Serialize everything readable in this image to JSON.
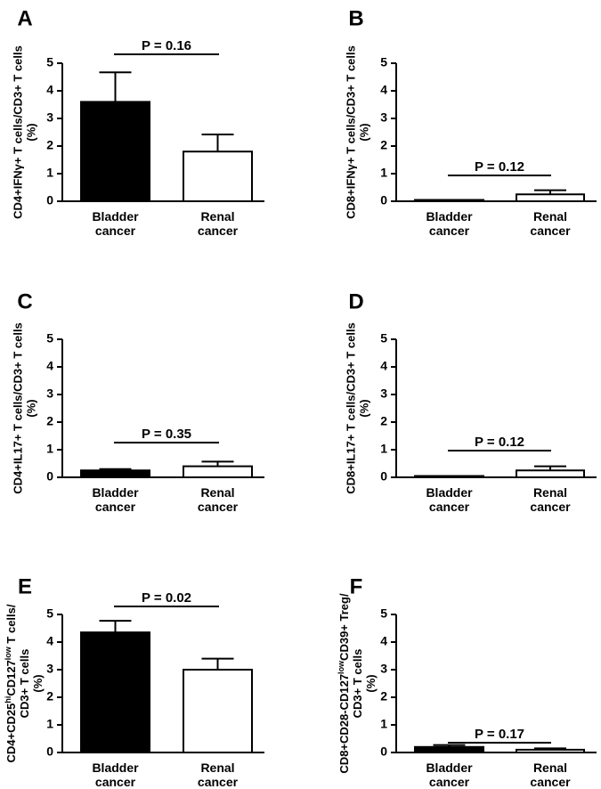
{
  "chart_data": [
    {
      "type": "bar",
      "panel": "A",
      "categories": [
        "Bladder\ncancer",
        "Renal\ncancer"
      ],
      "values": [
        3.6,
        1.8
      ],
      "errors": [
        1.07,
        0.62
      ],
      "ylabel": [
        "CD4+IFNγ+ T cells/CD3+ T cells",
        "(%)"
      ],
      "ylim": [
        0,
        5
      ],
      "yticks": [
        0,
        1,
        2,
        3,
        4,
        5
      ],
      "p_value": "P = 0.16",
      "bar_colors": [
        "#000000",
        "#ffffff"
      ]
    },
    {
      "type": "bar",
      "panel": "B",
      "categories": [
        "Bladder\ncancer",
        "Renal\ncancer"
      ],
      "values": [
        0.02,
        0.25
      ],
      "errors": [
        0.01,
        0.15
      ],
      "ylabel": [
        "CD8+IFNγ+ T cells/CD3+ T cells",
        "(%)"
      ],
      "ylim": [
        0,
        5
      ],
      "yticks": [
        0,
        1,
        2,
        3,
        4,
        5
      ],
      "p_value": "P = 0.12",
      "bar_colors": [
        "#000000",
        "#ffffff"
      ]
    },
    {
      "type": "bar",
      "panel": "C",
      "categories": [
        "Bladder\ncancer",
        "Renal\ncancer"
      ],
      "values": [
        0.25,
        0.4
      ],
      "errors": [
        0.05,
        0.17
      ],
      "ylabel": [
        "CD4+IL17+ T cells/CD3+ T cells",
        "(%)"
      ],
      "ylim": [
        0,
        5
      ],
      "yticks": [
        0,
        1,
        2,
        3,
        4,
        5
      ],
      "p_value": "P = 0.35",
      "bar_colors": [
        "#000000",
        "#ffffff"
      ]
    },
    {
      "type": "bar",
      "panel": "D",
      "categories": [
        "Bladder\ncancer",
        "Renal\ncancer"
      ],
      "values": [
        0.02,
        0.25
      ],
      "errors": [
        0.01,
        0.15
      ],
      "ylabel": [
        "CD8+IL17+ T cells/CD3+ T cells",
        "(%)"
      ],
      "ylim": [
        0,
        5
      ],
      "yticks": [
        0,
        1,
        2,
        3,
        4,
        5
      ],
      "p_value": "P = 0.12",
      "bar_colors": [
        "#000000",
        "#ffffff"
      ]
    },
    {
      "type": "bar",
      "panel": "E",
      "categories": [
        "Bladder\ncancer",
        "Renal\ncancer"
      ],
      "values": [
        4.35,
        3.0
      ],
      "errors": [
        0.42,
        0.4
      ],
      "ylabel": [
        "CD4+CD25^hiCD127^low T cells/",
        "CD3+ T cells",
        "(%)"
      ],
      "ylim": [
        0,
        5
      ],
      "yticks": [
        0,
        1,
        2,
        3,
        4,
        5
      ],
      "p_value": "P = 0.02",
      "bar_colors": [
        "#000000",
        "#ffffff"
      ]
    },
    {
      "type": "bar",
      "panel": "F",
      "categories": [
        "Bladder\ncancer",
        "Renal\ncancer"
      ],
      "values": [
        0.2,
        0.1
      ],
      "errors": [
        0.07,
        0.05
      ],
      "ylabel": [
        "CD8+CD28-CD127^lowCD39+ Treg/",
        "CD3+ T cells",
        "(%)"
      ],
      "ylim": [
        0,
        5
      ],
      "yticks": [
        0,
        1,
        2,
        3,
        4,
        5
      ],
      "p_value": "P = 0.17",
      "bar_colors": [
        "#000000",
        "#ffffff"
      ]
    }
  ]
}
